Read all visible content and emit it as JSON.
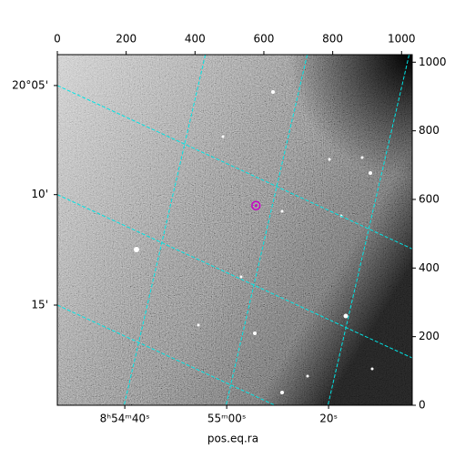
{
  "chart_data": {
    "type": "image",
    "xlabel": "pos.eq.ra",
    "xlim": [
      0,
      1031
    ],
    "ylim": [
      0,
      1022
    ],
    "xticks": [
      0,
      200,
      400,
      600,
      800,
      1000
    ],
    "yticks": [
      0,
      200,
      400,
      600,
      800,
      1000
    ],
    "ra_ticks": [
      {
        "value": 196,
        "label": "8ʰ54ᵐ40ˢ"
      },
      {
        "value": 492,
        "label": "55ᵐ00ˢ"
      },
      {
        "value": 788,
        "label": "20ˢ"
      }
    ],
    "dec_ticks": [
      {
        "value": 932,
        "label": "20°05'"
      },
      {
        "value": 614,
        "label": "10'"
      },
      {
        "value": 292,
        "label": "15'"
      }
    ],
    "grid": true,
    "grid_color": "#00e5e5",
    "marker": {
      "x": 577,
      "y": 582,
      "color": "#c800c8"
    }
  }
}
